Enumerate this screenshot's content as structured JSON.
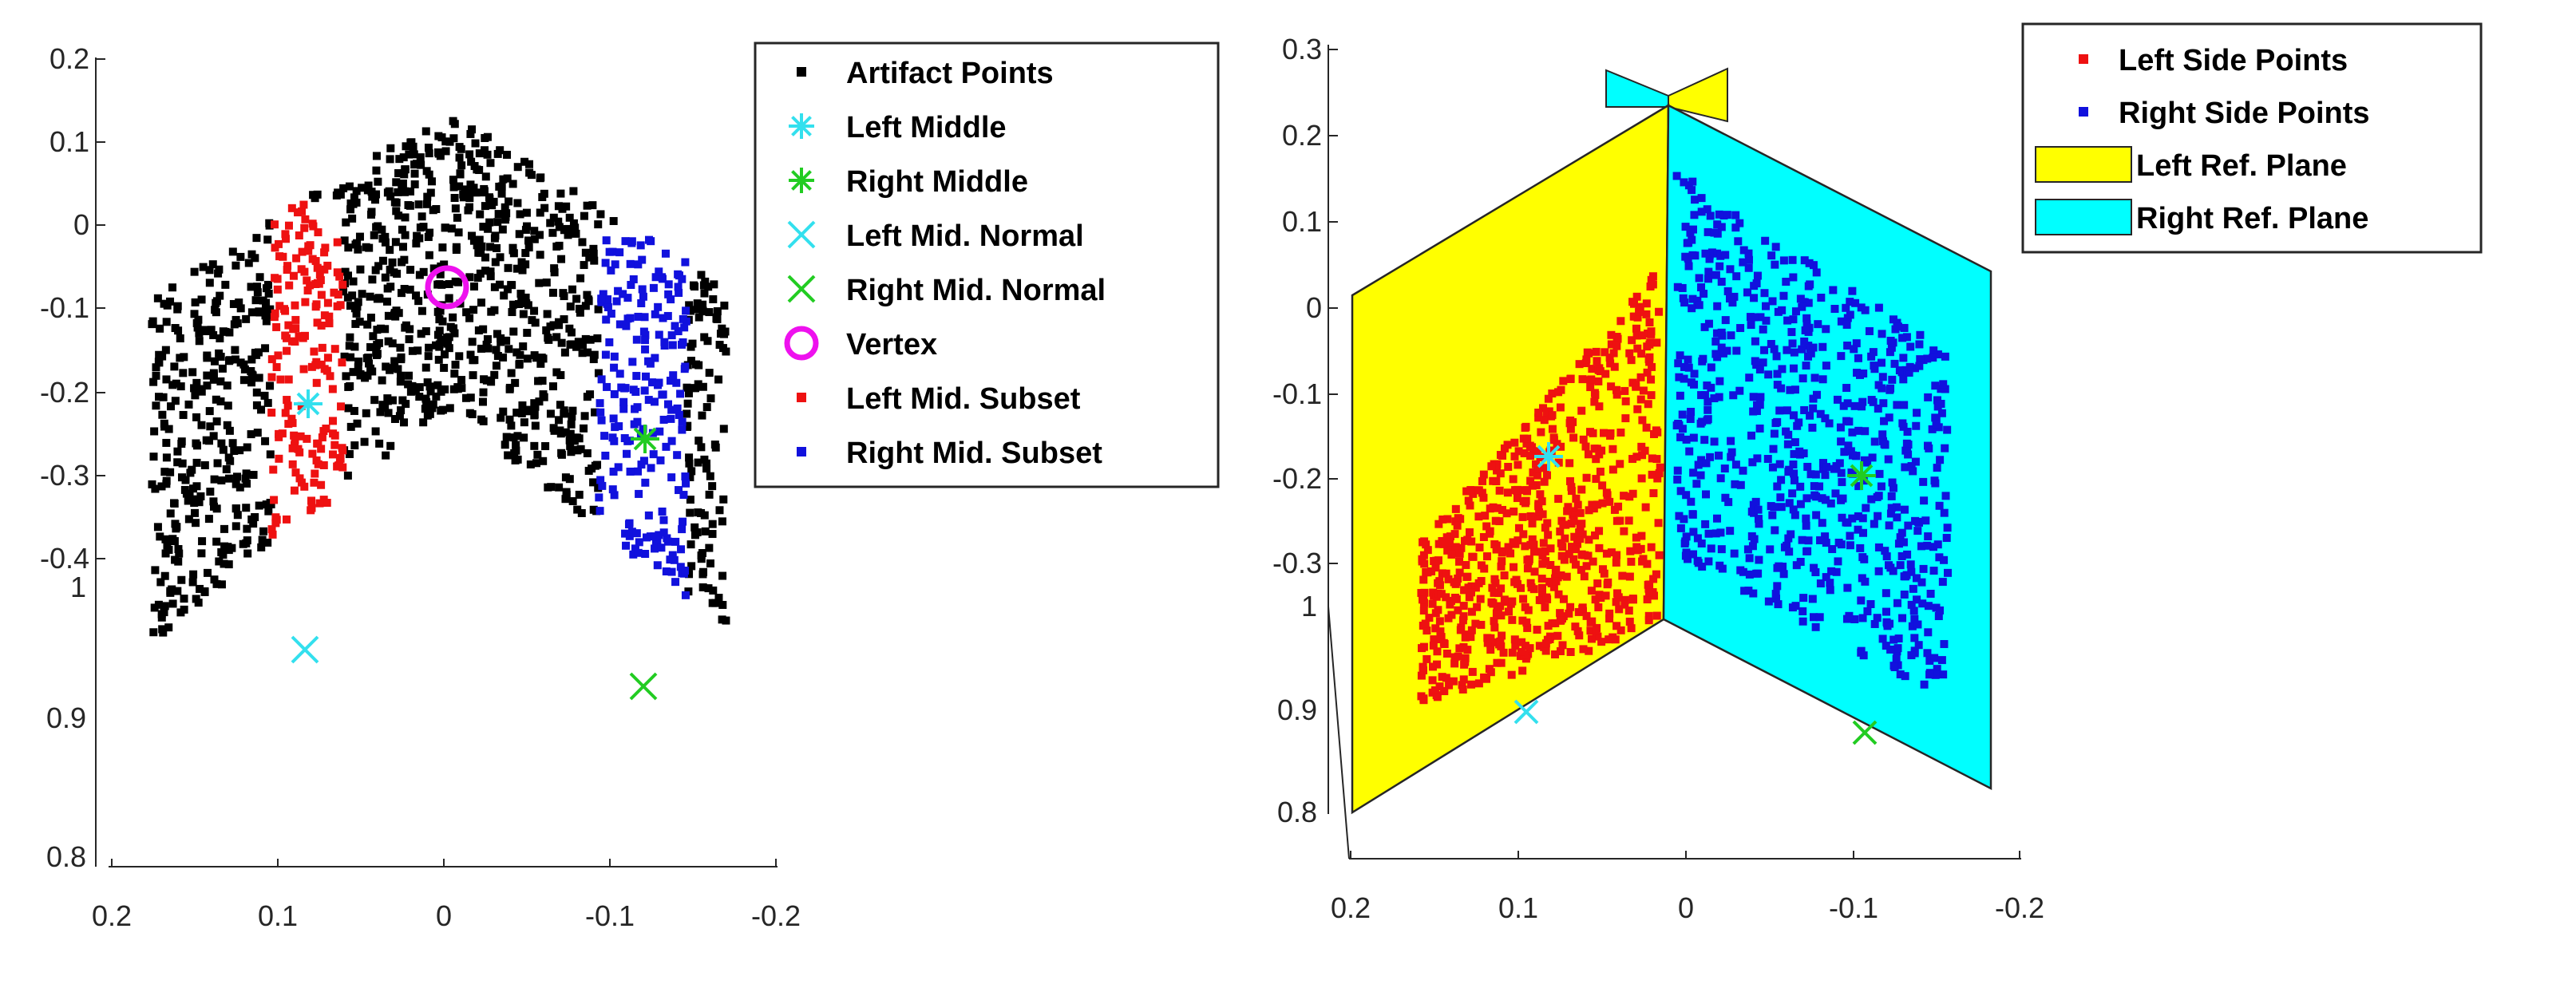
{
  "chart_data": [
    {
      "type": "scatter",
      "projection": "3d",
      "title": "",
      "x_ticks": [
        "0.2",
        "0.1",
        "0",
        "-0.1",
        "-0.2"
      ],
      "y_ticks": [
        "0.2",
        "0.1",
        "0",
        "-0.1",
        "-0.2",
        "-0.3",
        "-0.4"
      ],
      "z_ticks": [
        "1",
        "0.9",
        "0.8"
      ],
      "xlim": [
        0.2,
        -0.2
      ],
      "ylim": [
        -0.4,
        0.2
      ],
      "zlim": [
        0.8,
        1.0
      ],
      "legend_position": "top-right outside",
      "legend": [
        {
          "label": "Artifact Points",
          "marker": "square",
          "color": "#000000"
        },
        {
          "label": "Left Middle",
          "marker": "asterisk",
          "color": "#33e0ee"
        },
        {
          "label": "Right Middle",
          "marker": "asterisk",
          "color": "#22cc22"
        },
        {
          "label": "Left Mid. Normal",
          "marker": "x",
          "color": "#33e0ee"
        },
        {
          "label": "Right Mid. Normal",
          "marker": "x",
          "color": "#22cc22"
        },
        {
          "label": "Vertex",
          "marker": "circle",
          "color": "#ee11ee"
        },
        {
          "label": "Left Mid. Subset",
          "marker": "square",
          "color": "#ee1111"
        },
        {
          "label": "Right Mid. Subset",
          "marker": "square",
          "color": "#1111dd"
        }
      ],
      "series": [
        {
          "name": "Artifact Points",
          "description": "inverted-V shaped point cloud, apex near x=0, y=0.1",
          "x_range": [
            0.18,
            -0.17
          ],
          "y_range": [
            -0.42,
            0.12
          ]
        },
        {
          "name": "Left Middle",
          "x": 0.085,
          "y": -0.22
        },
        {
          "name": "Right Middle",
          "x": -0.12,
          "y": -0.26
        },
        {
          "name": "Left Mid. Normal",
          "x": 0.085,
          "y": -0.5
        },
        {
          "name": "Right Mid. Normal",
          "x": -0.12,
          "y": -0.55
        },
        {
          "name": "Vertex",
          "x": 0.0,
          "y": -0.07
        },
        {
          "name": "Left Mid. Subset",
          "x_range": [
            0.1,
            0.06
          ],
          "y_range": [
            -0.4,
            0.0
          ]
        },
        {
          "name": "Right Mid. Subset",
          "x_range": [
            -0.1,
            -0.15
          ],
          "y_range": [
            -0.45,
            -0.05
          ]
        }
      ]
    },
    {
      "type": "scatter",
      "projection": "3d",
      "title": "",
      "x_ticks": [
        "0.2",
        "0.1",
        "0",
        "-0.1",
        "-0.2"
      ],
      "y_ticks": [
        "0.3",
        "0.2",
        "0.1",
        "0",
        "-0.1",
        "-0.2",
        "-0.3"
      ],
      "z_ticks": [
        "1",
        "0.9",
        "0.8"
      ],
      "xlim": [
        0.2,
        -0.2
      ],
      "ylim": [
        -0.3,
        0.3
      ],
      "zlim": [
        0.8,
        1.0
      ],
      "legend_position": "top-right",
      "legend": [
        {
          "label": "Left Side Points",
          "marker": "square",
          "color": "#ee1111"
        },
        {
          "label": "Right Side Points",
          "marker": "square",
          "color": "#1111dd"
        },
        {
          "label": "Left Ref. Plane",
          "marker": "patch",
          "color": "#ffff00"
        },
        {
          "label": "Right Ref. Plane",
          "marker": "patch",
          "color": "#00ffff"
        }
      ],
      "series": [
        {
          "name": "Left Side Points",
          "x_range": [
            0.18,
            0.01
          ],
          "y_range": [
            -0.35,
            0.18
          ]
        },
        {
          "name": "Right Side Points",
          "x_range": [
            -0.01,
            -0.17
          ],
          "y_range": [
            -0.4,
            0.15
          ]
        },
        {
          "name": "Left Middle",
          "x": 0.085,
          "y": -0.17
        },
        {
          "name": "Right Middle",
          "x": -0.11,
          "y": -0.2
        },
        {
          "name": "Left Mid. Normal",
          "x": 0.1,
          "y": -0.38
        },
        {
          "name": "Right Mid. Normal",
          "x": -0.11,
          "y": -0.42
        }
      ],
      "planes": [
        {
          "name": "Left Ref. Plane",
          "color": "#ffff00"
        },
        {
          "name": "Right Ref. Plane",
          "color": "#00ffff"
        }
      ]
    }
  ]
}
